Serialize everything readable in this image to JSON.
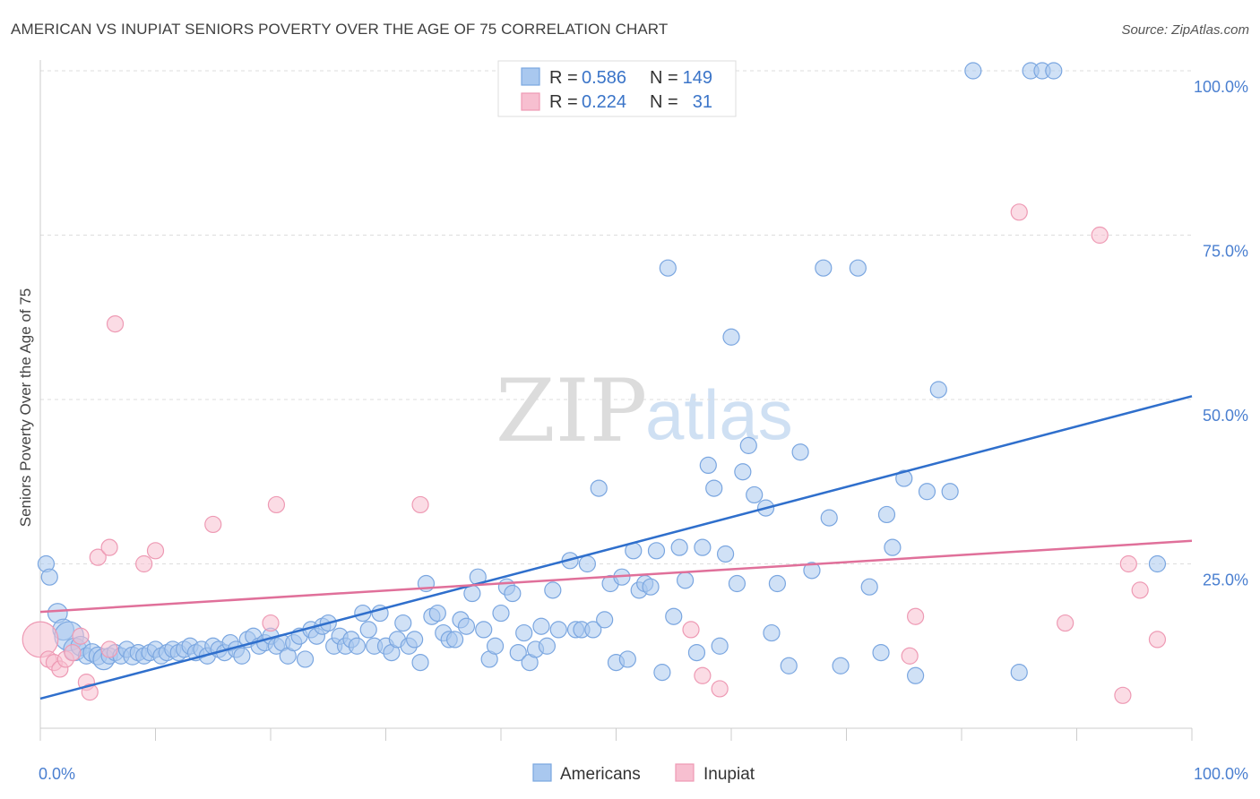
{
  "title": "AMERICAN VS INUPIAT SENIORS POVERTY OVER THE AGE OF 75 CORRELATION CHART",
  "source": "Source: ZipAtlas.com",
  "watermark": {
    "zip": "ZIP",
    "atlas": "atlas"
  },
  "colors": {
    "americans_fill": "#a9c8ef",
    "americans_stroke": "#7aa6e0",
    "americans_line": "#2f6fcc",
    "inupiat_fill": "#f7bfd0",
    "inupiat_stroke": "#ee9ab4",
    "inupiat_line": "#e0709a",
    "tick_text": "#4a7fd0",
    "grid": "#dddddd"
  },
  "stats": {
    "americans": {
      "r_label": "R =",
      "r_value": "0.586",
      "n_label": "N =",
      "n_value": "149"
    },
    "inupiat": {
      "r_label": "R =",
      "r_value": "0.224",
      "n_label": "N =",
      "n_value": "31"
    }
  },
  "chart_data": {
    "type": "scatter",
    "xlabel": "",
    "ylabel": "Seniors Poverty Over the Age of 75",
    "xlim": [
      0,
      100
    ],
    "ylim": [
      0,
      100
    ],
    "x_tick_labels": [
      "0.0%",
      "100.0%"
    ],
    "y_tick_labels": [
      {
        "value": 100,
        "label": "100.0%"
      },
      {
        "value": 75,
        "label": "75.0%"
      },
      {
        "value": 50,
        "label": "50.0%"
      },
      {
        "value": 25,
        "label": "25.0%"
      }
    ],
    "grid": true,
    "legend_position": "bottom-center",
    "series": [
      {
        "name": "Americans",
        "trend": {
          "x0": 0,
          "y0": 4.5,
          "x1": 100,
          "y1": 50.5
        },
        "points": [
          [
            0.5,
            25,
            1
          ],
          [
            0.8,
            23,
            1
          ],
          [
            1.5,
            17.5,
            1.2
          ],
          [
            2,
            15,
            1.3
          ],
          [
            2.5,
            14,
            1.8
          ],
          [
            3,
            12,
            1.4
          ],
          [
            3.5,
            12.5,
            1.2
          ],
          [
            4,
            11,
            1
          ],
          [
            4.5,
            11.5,
            1.1
          ],
          [
            5,
            11,
            1.1
          ],
          [
            5.5,
            10.5,
            1.3
          ],
          [
            6,
            11,
            1
          ],
          [
            6.5,
            11.5,
            1
          ],
          [
            7,
            11,
            1
          ],
          [
            7.5,
            12,
            1
          ],
          [
            8,
            11,
            1.1
          ],
          [
            8.5,
            11.5,
            1
          ],
          [
            9,
            11,
            1
          ],
          [
            9.5,
            11.5,
            1
          ],
          [
            10,
            12,
            1
          ],
          [
            10.5,
            11,
            1
          ],
          [
            11,
            11.5,
            1
          ],
          [
            11.5,
            12,
            1
          ],
          [
            12,
            11.5,
            1
          ],
          [
            12.5,
            12,
            1
          ],
          [
            13,
            12.5,
            1
          ],
          [
            13.5,
            11.5,
            1
          ],
          [
            14,
            12,
            1
          ],
          [
            14.5,
            11,
            1
          ],
          [
            15,
            12.5,
            1
          ],
          [
            15.5,
            12,
            1
          ],
          [
            16,
            11.5,
            1
          ],
          [
            16.5,
            13,
            1
          ],
          [
            17,
            12,
            1
          ],
          [
            17.5,
            11,
            1
          ],
          [
            18,
            13.5,
            1
          ],
          [
            18.5,
            14,
            1
          ],
          [
            19,
            12.5,
            1
          ],
          [
            19.5,
            13,
            1
          ],
          [
            20,
            14,
            1
          ],
          [
            20.5,
            12.5,
            1
          ],
          [
            21,
            13,
            1
          ],
          [
            21.5,
            11,
            1
          ],
          [
            22,
            13,
            1
          ],
          [
            22.5,
            14,
            1
          ],
          [
            23,
            10.5,
            1
          ],
          [
            23.5,
            15,
            1
          ],
          [
            24,
            14,
            1
          ],
          [
            24.5,
            15.5,
            1
          ],
          [
            25,
            16,
            1
          ],
          [
            25.5,
            12.5,
            1
          ],
          [
            26,
            14,
            1
          ],
          [
            26.5,
            12.5,
            1
          ],
          [
            27,
            13.5,
            1
          ],
          [
            27.5,
            12.5,
            1
          ],
          [
            28,
            17.5,
            1
          ],
          [
            28.5,
            15,
            1
          ],
          [
            29,
            12.5,
            1
          ],
          [
            29.5,
            17.5,
            1
          ],
          [
            30,
            12.5,
            1
          ],
          [
            30.5,
            11.5,
            1
          ],
          [
            31,
            13.5,
            1
          ],
          [
            31.5,
            16,
            1
          ],
          [
            32,
            12.5,
            1
          ],
          [
            32.5,
            13.5,
            1
          ],
          [
            33,
            10,
            1
          ],
          [
            33.5,
            22,
            1
          ],
          [
            34,
            17,
            1
          ],
          [
            34.5,
            17.5,
            1
          ],
          [
            35,
            14.5,
            1
          ],
          [
            35.5,
            13.5,
            1
          ],
          [
            36,
            13.5,
            1
          ],
          [
            36.5,
            16.5,
            1
          ],
          [
            37,
            15.5,
            1
          ],
          [
            37.5,
            20.5,
            1
          ],
          [
            38,
            23,
            1
          ],
          [
            38.5,
            15,
            1
          ],
          [
            39,
            10.5,
            1
          ],
          [
            39.5,
            12.5,
            1
          ],
          [
            40,
            17.5,
            1
          ],
          [
            40.5,
            21.5,
            1
          ],
          [
            41,
            20.5,
            1
          ],
          [
            41.5,
            11.5,
            1
          ],
          [
            42,
            14.5,
            1
          ],
          [
            42.5,
            10,
            1
          ],
          [
            43,
            12,
            1
          ],
          [
            43.5,
            15.5,
            1
          ],
          [
            44,
            12.5,
            1
          ],
          [
            44.5,
            21,
            1
          ],
          [
            45,
            15,
            1
          ],
          [
            46,
            25.5,
            1
          ],
          [
            46.5,
            15,
            1
          ],
          [
            47,
            15,
            1
          ],
          [
            47.5,
            25,
            1
          ],
          [
            48,
            15,
            1
          ],
          [
            48.5,
            36.5,
            1
          ],
          [
            49,
            16.5,
            1
          ],
          [
            49.5,
            22,
            1
          ],
          [
            50,
            10,
            1
          ],
          [
            50.5,
            23,
            1
          ],
          [
            51,
            10.5,
            1
          ],
          [
            51.5,
            27,
            1
          ],
          [
            52,
            21,
            1
          ],
          [
            52.5,
            22,
            1
          ],
          [
            53,
            21.5,
            1
          ],
          [
            53.5,
            27,
            1
          ],
          [
            54,
            8.5,
            1
          ],
          [
            54.5,
            70,
            1
          ],
          [
            55,
            17,
            1
          ],
          [
            55.5,
            27.5,
            1
          ],
          [
            56,
            22.5,
            1
          ],
          [
            57,
            11.5,
            1
          ],
          [
            57.5,
            27.5,
            1
          ],
          [
            58,
            40,
            1
          ],
          [
            58.5,
            36.5,
            1
          ],
          [
            59,
            12.5,
            1
          ],
          [
            59.5,
            26.5,
            1
          ],
          [
            60,
            59.5,
            1
          ],
          [
            60.5,
            22,
            1
          ],
          [
            61,
            39,
            1
          ],
          [
            61.5,
            43,
            1
          ],
          [
            62,
            35.5,
            1
          ],
          [
            63,
            33.5,
            1
          ],
          [
            63.5,
            14.5,
            1
          ],
          [
            64,
            22,
            1
          ],
          [
            65,
            9.5,
            1
          ],
          [
            66,
            42,
            1
          ],
          [
            67,
            24,
            1
          ],
          [
            68,
            70,
            1
          ],
          [
            68.5,
            32,
            1
          ],
          [
            69.5,
            9.5,
            1
          ],
          [
            71,
            70,
            1
          ],
          [
            72,
            21.5,
            1
          ],
          [
            73,
            11.5,
            1
          ],
          [
            73.5,
            32.5,
            1
          ],
          [
            74,
            27.5,
            1
          ],
          [
            75,
            38,
            1
          ],
          [
            76,
            8,
            1
          ],
          [
            77,
            36,
            1
          ],
          [
            78,
            51.5,
            1
          ],
          [
            79,
            36,
            1
          ],
          [
            81,
            100,
            1
          ],
          [
            85,
            8.5,
            1
          ],
          [
            86,
            100,
            1
          ],
          [
            87,
            100,
            1
          ],
          [
            88,
            100,
            1
          ],
          [
            97,
            25,
            1
          ]
        ]
      },
      {
        "name": "Inupiat",
        "trend": {
          "x0": 0,
          "y0": 17.7,
          "x1": 100,
          "y1": 28.5
        },
        "points": [
          [
            0,
            13.5,
            2.2
          ],
          [
            0.7,
            10.5,
            1
          ],
          [
            1.2,
            10,
            1
          ],
          [
            1.7,
            9,
            1
          ],
          [
            2.2,
            10.5,
            1
          ],
          [
            2.8,
            11.5,
            1
          ],
          [
            3.5,
            14,
            1
          ],
          [
            4,
            7,
            1
          ],
          [
            4.3,
            5.5,
            1
          ],
          [
            5,
            26,
            1
          ],
          [
            6,
            27.5,
            1
          ],
          [
            6,
            12,
            1
          ],
          [
            6.5,
            61.5,
            1
          ],
          [
            9,
            25,
            1
          ],
          [
            10,
            27,
            1
          ],
          [
            15,
            31,
            1
          ],
          [
            20,
            16,
            1
          ],
          [
            20.5,
            34,
            1
          ],
          [
            33,
            34,
            1
          ],
          [
            56.5,
            15,
            1
          ],
          [
            57.5,
            8,
            1
          ],
          [
            59,
            6,
            1
          ],
          [
            75.5,
            11,
            1
          ],
          [
            76,
            17,
            1
          ],
          [
            85,
            78.5,
            1
          ],
          [
            89,
            16,
            1
          ],
          [
            92,
            75,
            1
          ],
          [
            94,
            5,
            1
          ],
          [
            94.5,
            25,
            1
          ],
          [
            95.5,
            21,
            1
          ],
          [
            97,
            13.5,
            1
          ]
        ]
      }
    ]
  }
}
